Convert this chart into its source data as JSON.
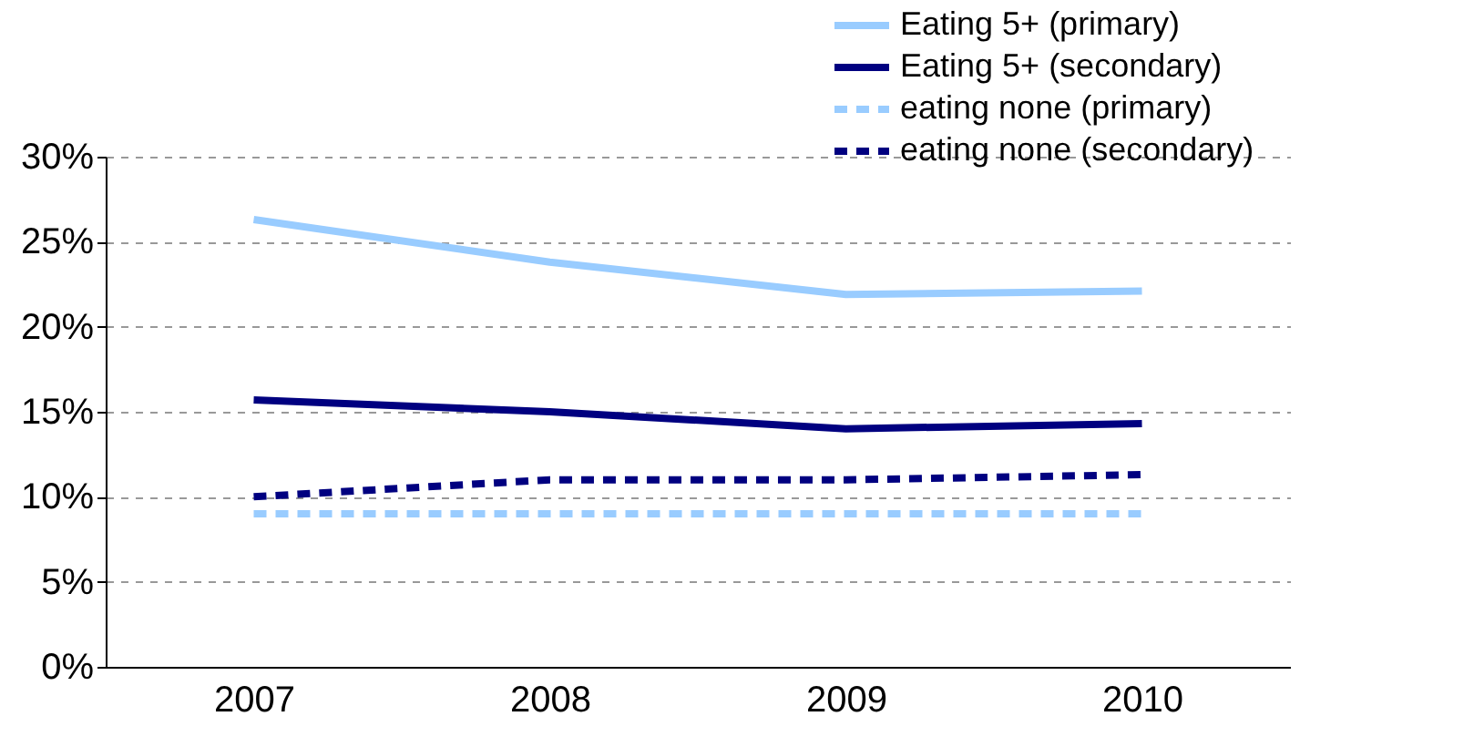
{
  "chart_data": {
    "type": "line",
    "categories": [
      "2007",
      "2008",
      "2009",
      "2010"
    ],
    "series": [
      {
        "name": "Eating 5+ (primary)",
        "color": "#99ccff",
        "line_style": "solid",
        "values": [
          26.3,
          23.8,
          21.9,
          22.1
        ]
      },
      {
        "name": "Eating 5+ (secondary)",
        "color": "#000080",
        "line_style": "solid",
        "values": [
          15.7,
          15.0,
          14.0,
          14.3
        ]
      },
      {
        "name": "eating none (primary)",
        "color": "#99ccff",
        "line_style": "dashed",
        "values": [
          9.0,
          9.0,
          9.0,
          9.0
        ]
      },
      {
        "name": "eating none (secondary)",
        "color": "#000080",
        "line_style": "dashed",
        "values": [
          10.0,
          11.0,
          11.0,
          11.3
        ]
      }
    ],
    "ylim": [
      0,
      30
    ],
    "yticks": [
      {
        "value": 0,
        "label": "0%"
      },
      {
        "value": 5,
        "label": "5%"
      },
      {
        "value": 10,
        "label": "10%"
      },
      {
        "value": 15,
        "label": "15%"
      },
      {
        "value": 20,
        "label": "20%"
      },
      {
        "value": 25,
        "label": "25%"
      },
      {
        "value": 30,
        "label": "30%"
      }
    ],
    "grid": "y",
    "legend": "top right",
    "marker": "none"
  }
}
